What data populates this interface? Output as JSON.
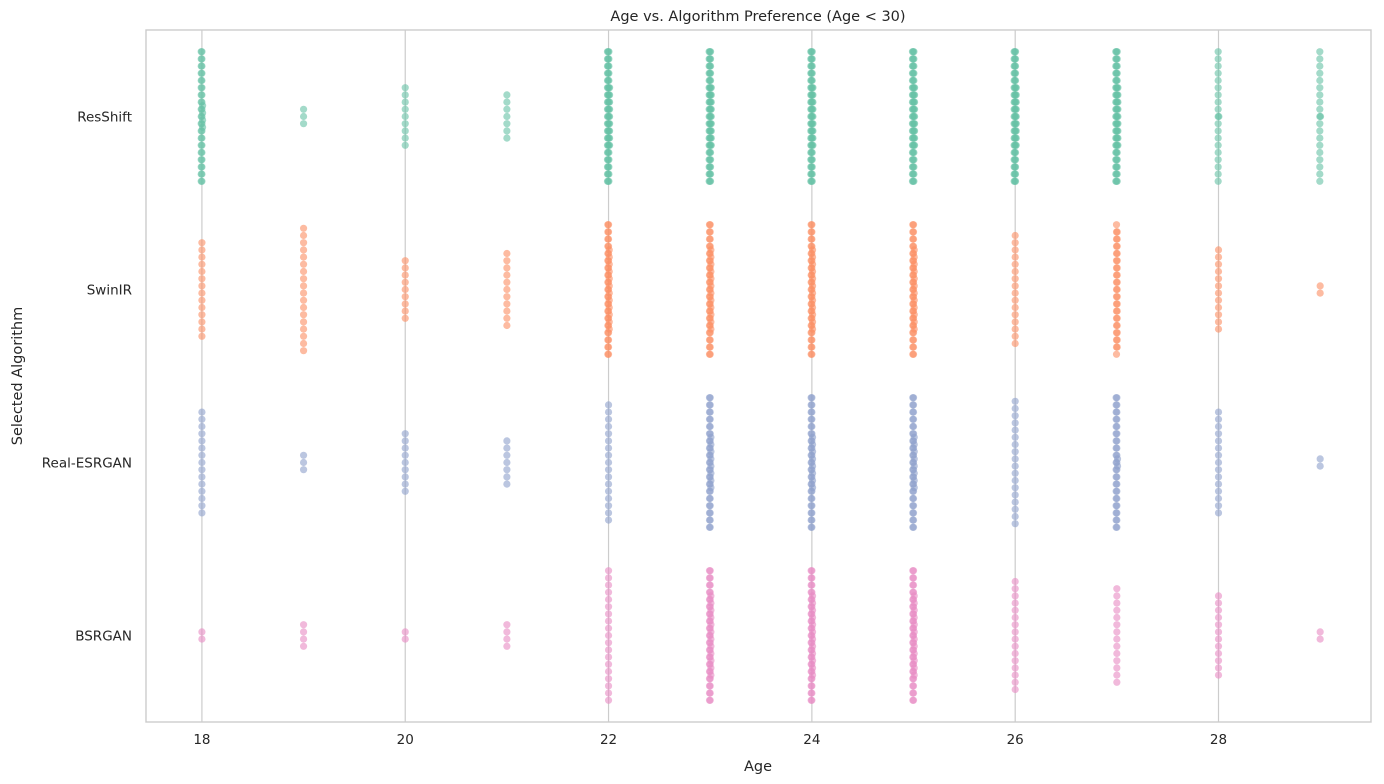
{
  "chart_data": {
    "type": "scatter",
    "subtype": "swarm/strip",
    "title": "Age vs. Algorithm Preference (Age < 30)",
    "xlabel": "Age",
    "ylabel": "Selected Algorithm",
    "xlim": [
      17.45,
      29.5
    ],
    "x_ticks": [
      18,
      20,
      22,
      24,
      26,
      28
    ],
    "categories": [
      "ResShift",
      "SwinIR",
      "Real-ESRGAN",
      "BSRGAN"
    ],
    "grid": "vertical",
    "legend": "none",
    "point_alpha": 0.6,
    "series": [
      {
        "category": "ResShift",
        "color": "#66c2a5",
        "counts": {
          "18": 42,
          "19": 3,
          "20": 9,
          "21": 7,
          "22": 66,
          "23": 66,
          "24": 66,
          "25": 66,
          "26": 66,
          "27": 66,
          "28": 20,
          "29": 20
        }
      },
      {
        "category": "SwinIR",
        "color": "#fc8d62",
        "counts": {
          "18": 14,
          "19": 18,
          "20": 9,
          "21": 11,
          "22": 50,
          "23": 50,
          "24": 50,
          "25": 50,
          "26": 16,
          "27": 36,
          "28": 12,
          "29": 2
        }
      },
      {
        "category": "Real-ESRGAN",
        "color": "#8da0cb",
        "counts": {
          "18": 15,
          "19": 3,
          "20": 9,
          "21": 7,
          "22": 17,
          "23": 46,
          "24": 46,
          "25": 46,
          "26": 18,
          "27": 40,
          "28": 15,
          "29": 2
        }
      },
      {
        "category": "BSRGAN",
        "color": "#e78ac3",
        "counts": {
          "18": 2,
          "19": 4,
          "20": 2,
          "21": 4,
          "22": 19,
          "23": 50,
          "24": 50,
          "25": 50,
          "26": 16,
          "27": 14,
          "28": 12,
          "29": 2
        }
      }
    ]
  }
}
